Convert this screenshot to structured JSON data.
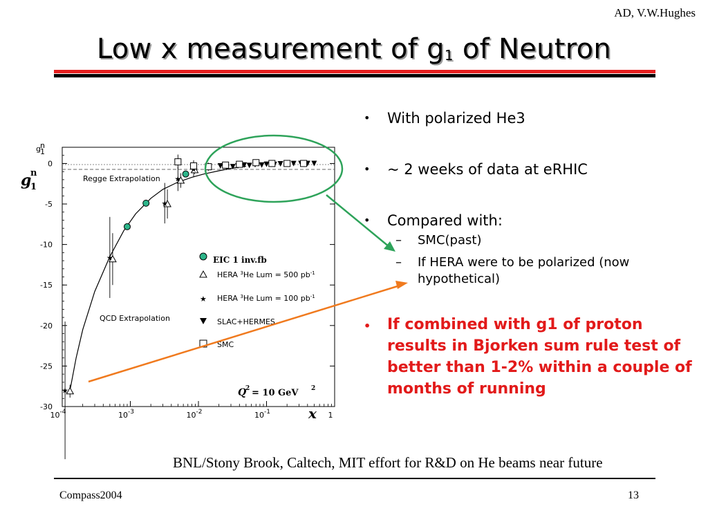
{
  "header": {
    "author": "AD, V.W.Hughes",
    "title_main": "Low x measurement of g",
    "title_sub": "1",
    "title_end": " of Neutron"
  },
  "bullets": {
    "b1": "With polarized He3",
    "b2": "~ 2 weeks of data at eRHIC",
    "b3": "Compared with:",
    "s1": "SMC(past)",
    "s2": "If HERA were to be polarized (now hypothetical)",
    "b4": "If combined with g1 of proton results in Bjorken sum rule test of better than 1-2% within a couple of months of running",
    "bullet_glyph": "•",
    "dash_glyph": "–"
  },
  "footer": {
    "note": "BNL/Stony Brook, Caltech, MIT effort for R&D on He beams near future",
    "left": "Compass2004",
    "page": "13"
  },
  "colors": {
    "title_rule_red": "#e41e1e",
    "highlight_bullet": "#e21a1a",
    "eic_marker": "#2db58a",
    "circle_annotation": "#2ea35a",
    "orange_arrow": "#f07a1e"
  },
  "chart_data": {
    "type": "scatter",
    "xscale": "log",
    "xlim": [
      0.0001,
      1
    ],
    "ylim": [
      -30,
      2
    ],
    "x_ticks": [
      {
        "base": "10",
        "exp": "-4"
      },
      {
        "base": "10",
        "exp": "-3"
      },
      {
        "base": "10",
        "exp": "-2"
      },
      {
        "base": "10",
        "exp": "-1"
      },
      {
        "base": "1",
        "exp": ""
      }
    ],
    "y_ticks": [
      "0",
      "-5",
      "-10",
      "-15",
      "-20",
      "-25",
      "-30"
    ],
    "y_tick_values": [
      0,
      -5,
      -10,
      -15,
      -20,
      -25,
      -30
    ],
    "ylabel_small": "g",
    "ylabel_small_sub": "1",
    "ylabel_small_sup": "n",
    "ylabel": "g",
    "ylabel_sub": "1",
    "ylabel_sup": "n",
    "xlabel": "x",
    "q2_label": "= 10 GeV",
    "q2_sym": "Q",
    "q2_exp": "2",
    "q2_unit_exp": "2",
    "annotations": {
      "regge": "Regge Extrapolation",
      "qcd": "QCD Extrapolation"
    },
    "legend": {
      "eic": "EIC 1 inv.fb",
      "hera500_pre": "HERA ",
      "hera500_sup": "3",
      "hera500_post": "He Lum = 500 pb",
      "hera500_unit": "-1",
      "hera100_pre": "HERA ",
      "hera100_sup": "3",
      "hera100_post": "He Lum = 100 pb",
      "hera100_unit": "-1",
      "slac": "SLAC+HERMES",
      "smc": "SMC"
    },
    "curve": {
      "x": [
        0.00013,
        0.00016,
        0.0002,
        0.0003,
        0.0005,
        0.0008,
        0.0012,
        0.002,
        0.003,
        0.005,
        0.008,
        0.012,
        0.02,
        0.03,
        0.05
      ],
      "y": [
        -28.0,
        -24.0,
        -20.5,
        -15.8,
        -11.5,
        -8.3,
        -6.2,
        -4.3,
        -3.2,
        -2.3,
        -1.7,
        -1.3,
        -0.9,
        -0.6,
        -0.35
      ]
    },
    "series": [
      {
        "name": "EIC 1 inv.fb",
        "marker": "circle-filled",
        "x": [
          0.0009,
          0.0017,
          0.0065
        ],
        "y": [
          -7.8,
          -4.9,
          -1.3
        ]
      },
      {
        "name": "HERA 3He Lum = 500 pb-1",
        "marker": "triangle-open",
        "x": [
          0.00013,
          0.00055,
          0.0035,
          0.0055,
          0.0088
        ],
        "y": [
          -28.1,
          -11.8,
          -5.0,
          -2.1,
          -0.8
        ],
        "err": [
          0.8,
          3.2,
          1.8,
          0.9,
          0.5
        ]
      },
      {
        "name": "HERA 3He Lum = 100 pb-1",
        "marker": "star",
        "x": [
          0.00011,
          0.0005,
          0.0032,
          0.005,
          0.0085
        ],
        "y": [
          -28.0,
          -11.6,
          -4.9,
          -1.9,
          -0.7
        ],
        "err": [
          8.5,
          5.0,
          2.5,
          1.5,
          1.0
        ]
      },
      {
        "name": "SLAC+HERMES",
        "marker": "triangle-down-filled",
        "x": [
          0.021,
          0.026,
          0.032,
          0.038,
          0.047,
          0.056,
          0.068,
          0.085,
          0.1,
          0.13,
          0.16,
          0.2,
          0.25,
          0.32,
          0.4,
          0.5
        ],
        "y": [
          -0.3,
          -0.5,
          -0.4,
          -0.3,
          -0.2,
          -0.25,
          -0.15,
          -0.2,
          -0.1,
          -0.12,
          -0.05,
          -0.05,
          -0.02,
          0.0,
          0.0,
          0.0
        ]
      },
      {
        "name": "SMC",
        "marker": "square-open",
        "x": [
          0.005,
          0.0085,
          0.014,
          0.025,
          0.04,
          0.07,
          0.12,
          0.2,
          0.35
        ],
        "y": [
          0.2,
          -0.3,
          -0.4,
          -0.2,
          -0.1,
          0.1,
          0.0,
          0.0,
          0.0
        ],
        "err": [
          0.9,
          0.7,
          0.5,
          0.4,
          0.3,
          0.3,
          0.2,
          0.2,
          0.2
        ]
      }
    ]
  }
}
